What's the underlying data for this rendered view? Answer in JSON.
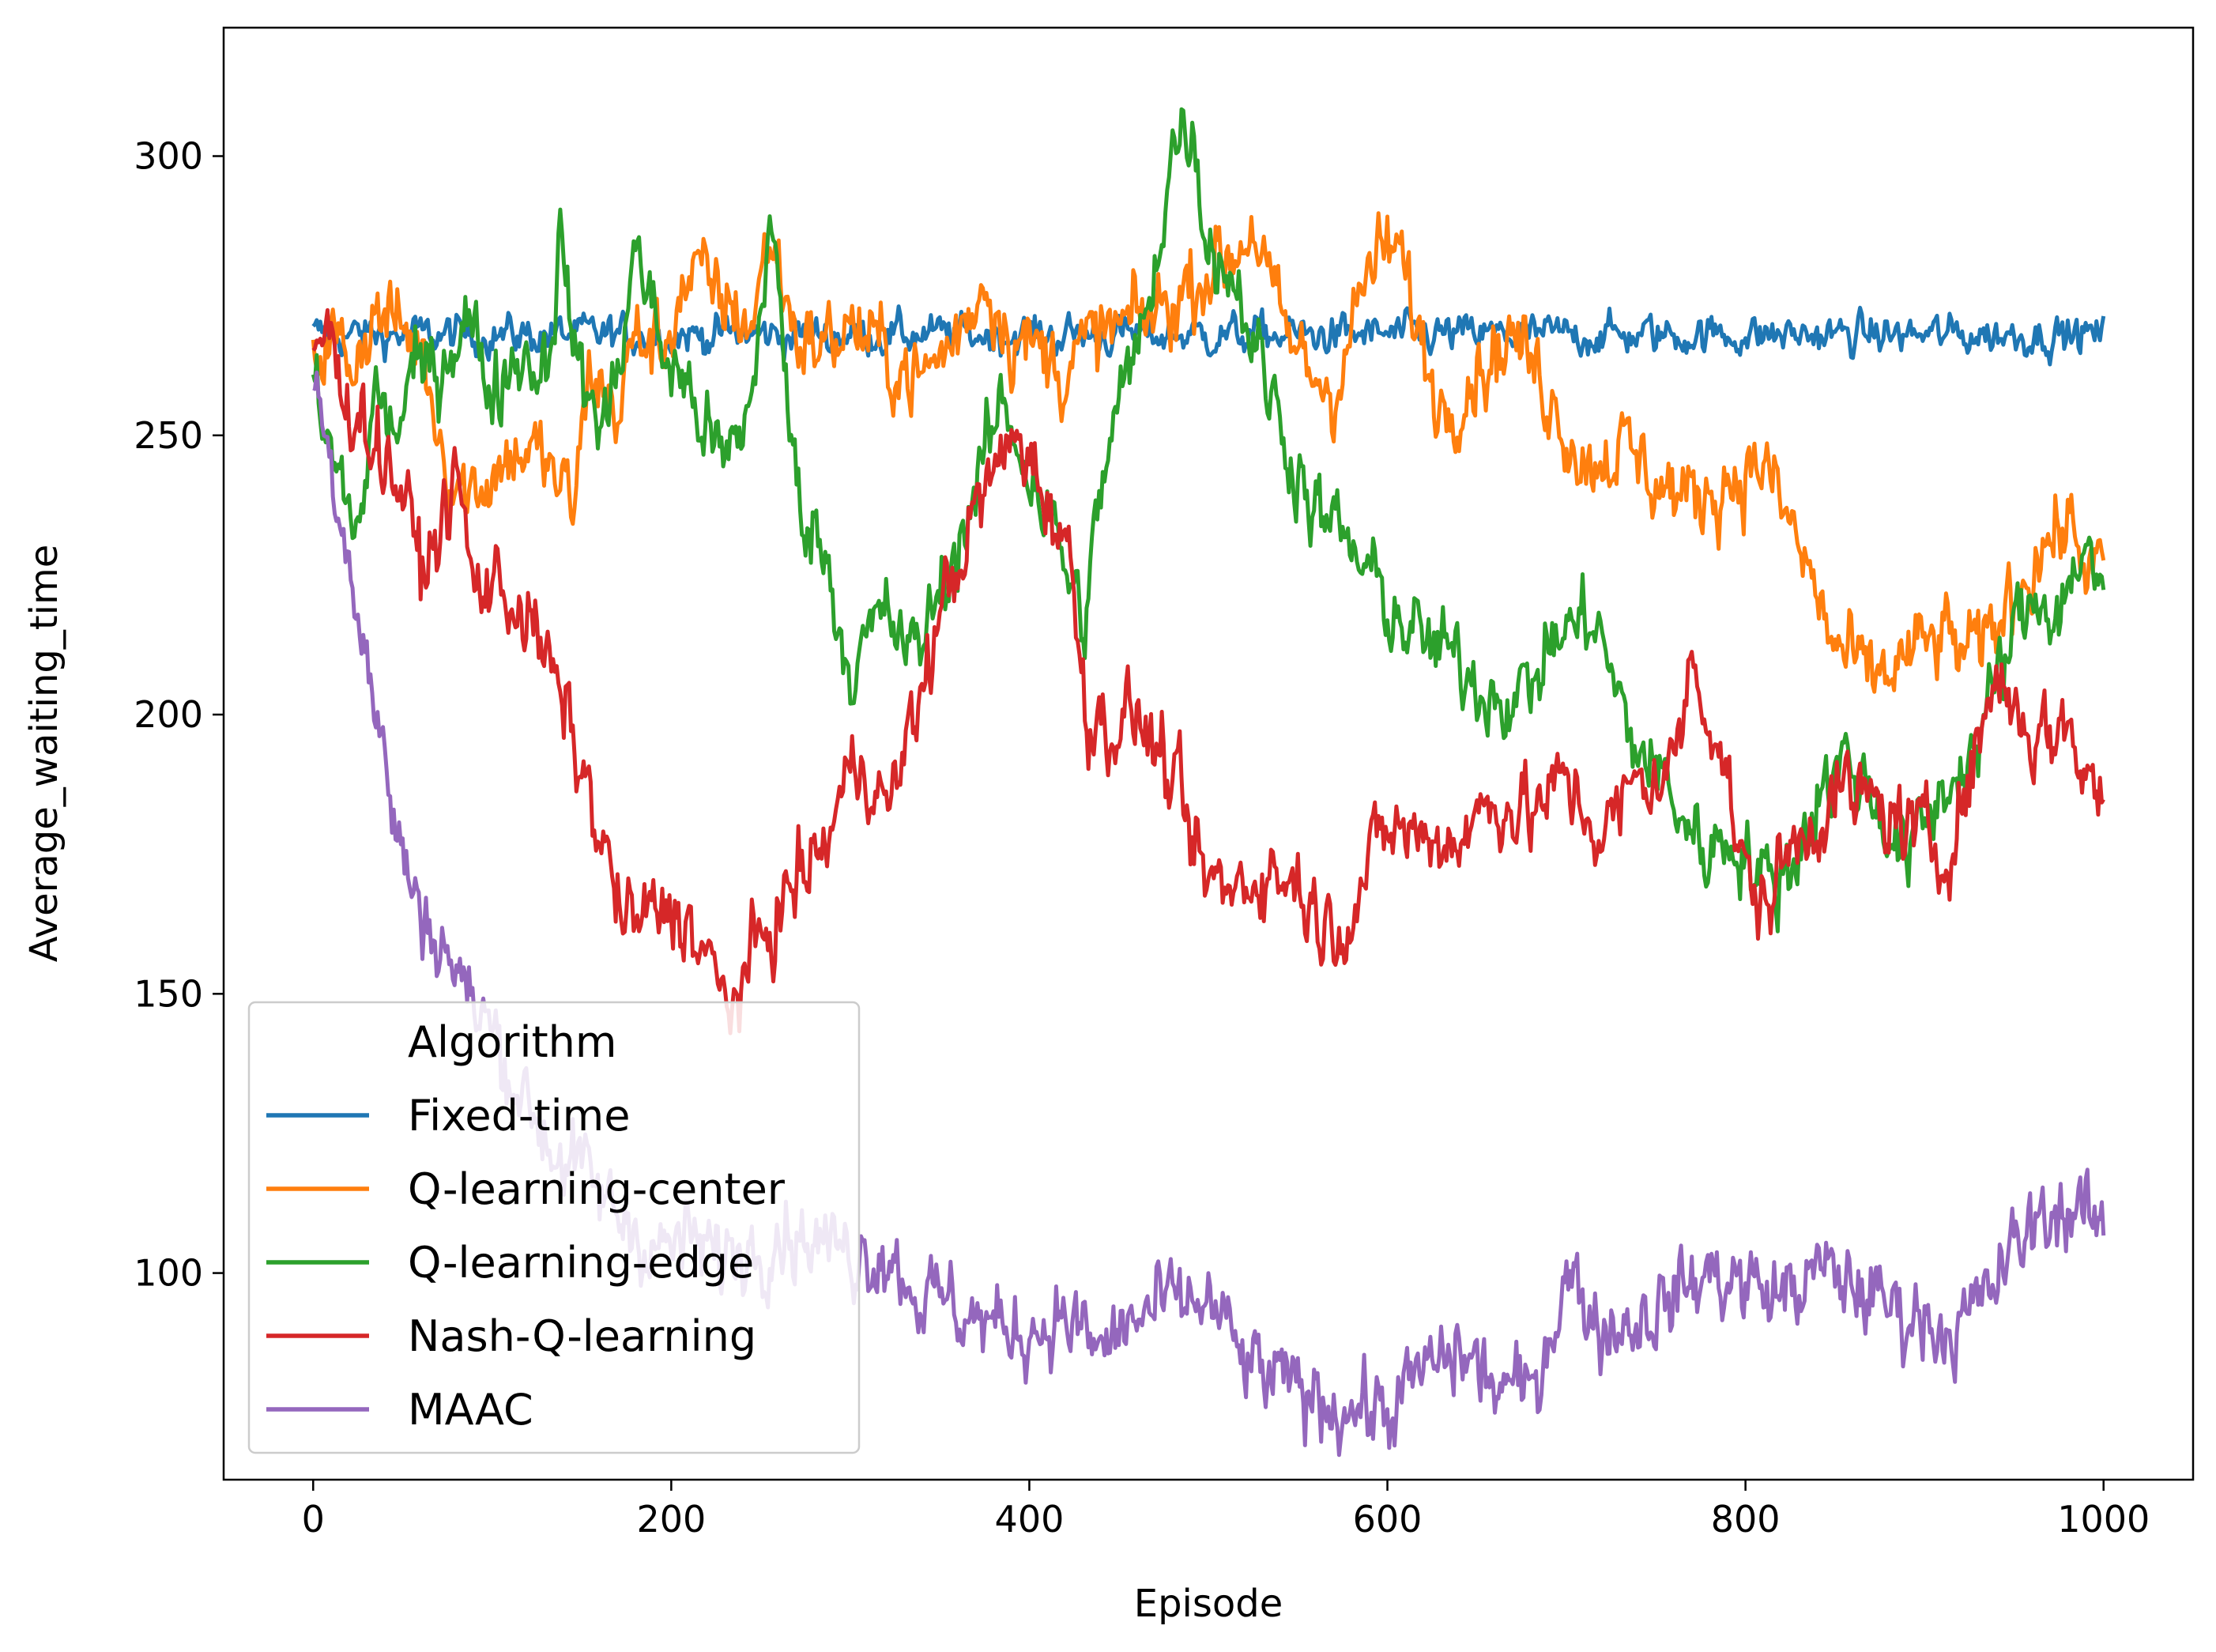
{
  "chart_data": {
    "type": "line",
    "title": "",
    "xlabel": "Episode",
    "ylabel": "Average_waiting_time",
    "xlim": [
      -50,
      1050
    ],
    "ylim": [
      63,
      323
    ],
    "xticks": [
      0,
      200,
      400,
      600,
      800,
      1000
    ],
    "yticks": [
      100,
      150,
      200,
      250,
      300
    ],
    "grid": false,
    "legend": {
      "title": "Algorithm",
      "placement": "lower-left"
    },
    "series": [
      {
        "name": "Fixed-time",
        "color": "#1f77b4",
        "x": [
          0,
          1000
        ],
        "values": [
          268,
          268
        ],
        "noise": 1.5
      },
      {
        "name": "Q-learning-center",
        "color": "#ff7f0e",
        "x": [
          0,
          10,
          20,
          35,
          45,
          60,
          75,
          85,
          100,
          115,
          130,
          145,
          155,
          170,
          180,
          195,
          205,
          215,
          230,
          245,
          255,
          270,
          285,
          300,
          320,
          340,
          360,
          375,
          390,
          405,
          420,
          440,
          460,
          480,
          500,
          515,
          525,
          540,
          555,
          570,
          590,
          605,
          620,
          630,
          650,
          670,
          690,
          710,
          730,
          750,
          770,
          790,
          810,
          830,
          850,
          870,
          890,
          910,
          930,
          950,
          965,
          980,
          990,
          1000
        ],
        "values": [
          265,
          268,
          263,
          272,
          270,
          266,
          245,
          240,
          243,
          248,
          245,
          237,
          262,
          254,
          268,
          265,
          276,
          278,
          274,
          270,
          286,
          268,
          266,
          270,
          264,
          260,
          268,
          278,
          268,
          265,
          262,
          268,
          270,
          274,
          280,
          283,
          288,
          270,
          262,
          258,
          280,
          284,
          265,
          255,
          262,
          268,
          258,
          245,
          248,
          242,
          238,
          242,
          245,
          230,
          212,
          206,
          210,
          214,
          210,
          222,
          230,
          234,
          228,
          224
        ]
      },
      {
        "name": "Q-learning-edge",
        "color": "#2ca02c",
        "x": [
          0,
          5,
          15,
          25,
          35,
          45,
          55,
          70,
          85,
          100,
          115,
          130,
          138,
          150,
          165,
          180,
          195,
          210,
          230,
          245,
          255,
          270,
          285,
          300,
          320,
          335,
          350,
          370,
          385,
          400,
          415,
          430,
          445,
          465,
          480,
          490,
          500,
          515,
          530,
          545,
          560,
          575,
          595,
          615,
          635,
          655,
          675,
          695,
          715,
          735,
          755,
          775,
          795,
          810,
          825,
          840,
          855,
          870,
          890,
          910,
          930,
          950,
          965,
          975,
          990,
          1000
        ],
        "values": [
          262,
          250,
          242,
          232,
          258,
          250,
          260,
          262,
          272,
          258,
          265,
          262,
          285,
          258,
          252,
          284,
          265,
          258,
          244,
          256,
          290,
          240,
          230,
          208,
          218,
          210,
          222,
          240,
          256,
          244,
          232,
          216,
          250,
          270,
          302,
          306,
          285,
          278,
          262,
          248,
          236,
          232,
          222,
          214,
          210,
          205,
          203,
          214,
          218,
          196,
          188,
          176,
          178,
          170,
          172,
          186,
          192,
          186,
          174,
          186,
          195,
          215,
          222,
          218,
          232,
          216
        ]
      },
      {
        "name": "Nash-Q-learning",
        "color": "#d62728",
        "x": [
          0,
          8,
          15,
          25,
          35,
          50,
          60,
          70,
          80,
          90,
          100,
          115,
          130,
          145,
          160,
          175,
          190,
          205,
          220,
          230,
          240,
          255,
          270,
          285,
          300,
          310,
          320,
          335,
          350,
          370,
          385,
          395,
          405,
          420,
          433,
          445,
          460,
          480,
          495,
          510,
          530,
          550,
          565,
          580,
          600,
          620,
          640,
          660,
          680,
          700,
          720,
          740,
          760,
          770,
          785,
          800,
          810,
          830,
          850,
          870,
          890,
          910,
          925,
          940,
          960,
          980,
          990,
          1000
        ],
        "values": [
          265,
          270,
          258,
          255,
          248,
          240,
          226,
          232,
          243,
          222,
          224,
          220,
          210,
          196,
          178,
          162,
          164,
          165,
          156,
          148,
          152,
          162,
          170,
          176,
          190,
          192,
          182,
          198,
          218,
          236,
          246,
          250,
          242,
          232,
          200,
          198,
          200,
          188,
          172,
          168,
          172,
          170,
          162,
          165,
          180,
          178,
          178,
          185,
          182,
          188,
          178,
          188,
          190,
          210,
          196,
          170,
          166,
          178,
          186,
          184,
          180,
          175,
          188,
          208,
          196,
          198,
          190,
          184
        ]
      },
      {
        "name": "MAAC",
        "color": "#9467bd",
        "x": [
          0,
          8,
          15,
          25,
          35,
          45,
          55,
          65,
          75,
          85,
          95,
          105,
          120,
          135,
          150,
          165,
          180,
          195,
          210,
          225,
          240,
          260,
          280,
          300,
          320,
          340,
          360,
          380,
          400,
          420,
          440,
          460,
          480,
          500,
          520,
          540,
          560,
          580,
          600,
          620,
          640,
          660,
          680,
          700,
          720,
          740,
          760,
          780,
          800,
          820,
          840,
          860,
          880,
          900,
          920,
          935,
          950,
          965,
          975,
          990,
          1000
        ],
        "values": [
          262,
          248,
          238,
          220,
          200,
          182,
          168,
          162,
          158,
          150,
          146,
          140,
          130,
          122,
          118,
          112,
          108,
          104,
          106,
          103,
          104,
          108,
          106,
          104,
          104,
          96,
          94,
          90,
          90,
          92,
          86,
          92,
          94,
          95,
          84,
          80,
          78,
          76,
          75,
          82,
          86,
          80,
          78,
          100,
          90,
          92,
          96,
          100,
          98,
          96,
          100,
          98,
          94,
          92,
          90,
          96,
          104,
          110,
          112,
          110,
          107
        ]
      }
    ]
  }
}
